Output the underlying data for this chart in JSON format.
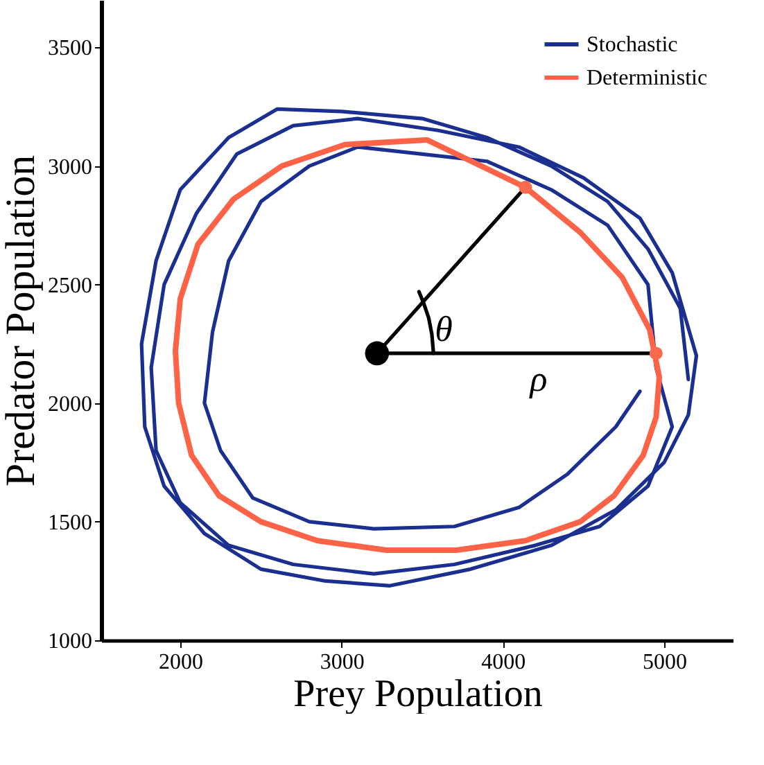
{
  "chart_data": {
    "type": "line",
    "xlabel": "Prey Population",
    "ylabel": "Predator Population",
    "xlim": [
      1510,
      5430
    ],
    "ylim": [
      1000,
      3700
    ],
    "xticks": [
      2000,
      3000,
      4000,
      5000
    ],
    "yticks": [
      1000,
      1500,
      2000,
      2500,
      3000,
      3500
    ],
    "grid": false,
    "legend": "top right",
    "line_style": "solid",
    "annotations": [
      {
        "text": "θ",
        "x": 3510,
        "y": 2420
      },
      {
        "text": "ρ",
        "x": 4100,
        "y": 2210
      }
    ],
    "series": [
      {
        "name": "Stochastic",
        "color": "#1a2f8f",
        "x": [
          5150,
          5100,
          4900,
          4650,
          4300,
          3900,
          3500,
          3000,
          2600,
          2300,
          2000,
          1850,
          1760,
          1780,
          1900,
          2150,
          2500,
          2900,
          3300,
          3800,
          4300,
          4700,
          5000,
          5150,
          5200,
          5050,
          4850,
          4500,
          4100,
          3600,
          3100,
          2700,
          2350,
          2100,
          1900,
          1820,
          1850,
          2000,
          2300,
          2700,
          3200,
          3700,
          4200,
          4600,
          4900,
          5050,
          4950,
          4900,
          4650,
          4300,
          3900,
          3500,
          3100,
          2800,
          2500,
          2300,
          2200,
          2150,
          2250,
          2450,
          2800,
          3200,
          3700,
          4100,
          4400,
          4700,
          4850
        ],
        "values": [
          2100,
          2400,
          2650,
          2850,
          3000,
          3120,
          3200,
          3230,
          3240,
          3120,
          2900,
          2600,
          2250,
          1900,
          1650,
          1450,
          1300,
          1250,
          1230,
          1300,
          1400,
          1550,
          1750,
          1950,
          2200,
          2550,
          2780,
          2950,
          3080,
          3150,
          3200,
          3170,
          3050,
          2800,
          2500,
          2150,
          1800,
          1580,
          1400,
          1320,
          1280,
          1320,
          1400,
          1480,
          1650,
          1900,
          2150,
          2500,
          2750,
          2900,
          3020,
          3050,
          3080,
          3000,
          2850,
          2600,
          2300,
          2000,
          1800,
          1600,
          1500,
          1470,
          1480,
          1560,
          1700,
          1900,
          2050
        ]
      },
      {
        "name": "Deterministic",
        "color": "#ff6347",
        "x": [
          3530,
          4140,
          4480,
          4740,
          4910,
          4970,
          4950,
          4870,
          4690,
          4480,
          4140,
          3710,
          3280,
          2850,
          2500,
          2240,
          2070,
          1990,
          1970,
          2000,
          2110,
          2330,
          2630,
          3020,
          3520
        ],
        "values": [
          3110,
          2910,
          2720,
          2530,
          2310,
          2110,
          1940,
          1780,
          1610,
          1500,
          1420,
          1380,
          1380,
          1420,
          1500,
          1610,
          1780,
          2000,
          2220,
          2440,
          2670,
          2860,
          3000,
          3090,
          3110
        ]
      },
      {
        "color": "#000000",
        "x": [
          3220,
          4140
        ],
        "values": [
          2210,
          2910
        ]
      },
      {
        "color": "#000000",
        "x": [
          3220,
          4950
        ],
        "values": [
          2210,
          2210
        ]
      },
      {
        "color": "#000000",
        "x": [
          3570,
          3560,
          3540,
          3510,
          3480
        ],
        "values": [
          2210,
          2290,
          2360,
          2420,
          2470
        ]
      },
      {
        "type": "scatter",
        "marker": "circle",
        "color": "#fa6a4c",
        "x": [
          4140,
          4950
        ],
        "values": [
          2910,
          2210
        ]
      },
      {
        "type": "scatter",
        "marker": "circle",
        "color": "#000000",
        "x": [
          3220
        ],
        "values": [
          2210
        ]
      }
    ]
  }
}
